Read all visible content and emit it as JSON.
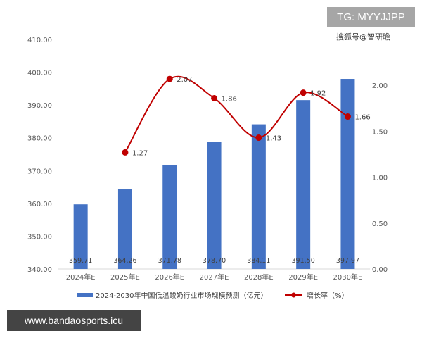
{
  "chart_data": {
    "type": "bar+line",
    "categories": [
      "2024年E",
      "2025年E",
      "2026年E",
      "2027年E",
      "2028年E",
      "2029年E",
      "2030年E"
    ],
    "series": [
      {
        "name": "2024-2030年中国低温酸奶行业市场规模预测（亿元）",
        "type": "bar",
        "axis": "left",
        "values": [
          359.71,
          364.26,
          371.78,
          378.7,
          384.11,
          391.5,
          397.97
        ],
        "color": "#4472c4"
      },
      {
        "name": "增长率（%）",
        "type": "line",
        "axis": "right",
        "values": [
          null,
          1.27,
          2.07,
          1.86,
          1.43,
          1.92,
          1.66
        ],
        "color": "#c00000"
      }
    ],
    "y_left": {
      "ylim": [
        340,
        410
      ],
      "ticks": [
        "340.00",
        "350.00",
        "360.00",
        "370.00",
        "380.00",
        "390.00",
        "400.00",
        "410.00"
      ]
    },
    "y_right": {
      "ylim": [
        0,
        2.5
      ],
      "ticks": [
        "0.00",
        "0.50",
        "1.00",
        "1.50",
        "2.00"
      ]
    },
    "legend": "bottom",
    "grid": false
  },
  "watermarks": {
    "tg": "TG: MYYJJPP",
    "source": "搜狐号@智研瞻",
    "site": "www.bandaosports.icu"
  }
}
